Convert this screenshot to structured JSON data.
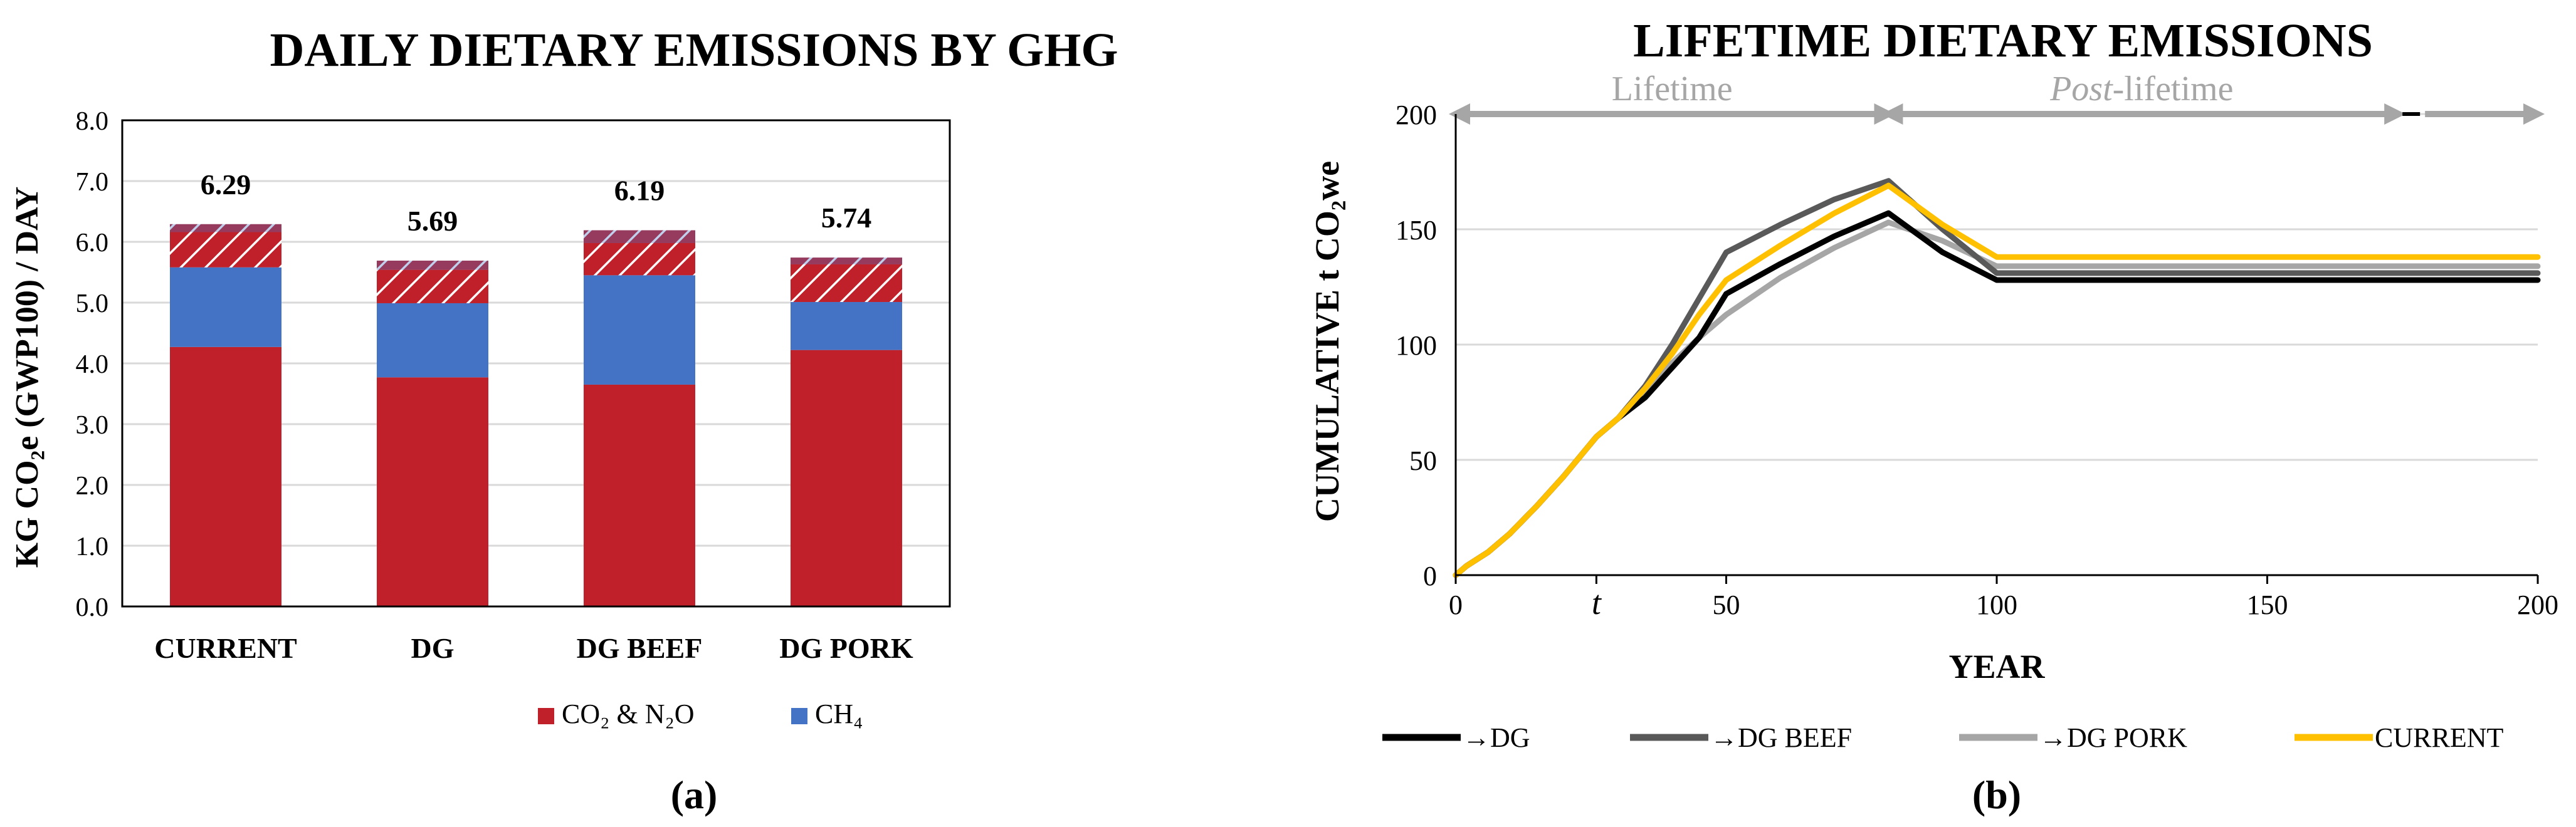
{
  "panels": {
    "a_label": "(a)",
    "b_label": "(b)"
  },
  "colors": {
    "co2_n2o": "#C0202A",
    "ch4": "#4472C4",
    "hatch_bg": "#C0202A",
    "hatch_line": "#FFFFFF",
    "grid": "#D9D9D9",
    "axis": "#000000",
    "arrow": "#A6A6A6",
    "dg": "#000000",
    "dg_beef": "#595959",
    "dg_pork": "#A6A6A6",
    "current": "#FFC000"
  },
  "chart_data": [
    {
      "type": "bar",
      "stacked": true,
      "title": "DAILY DIETARY EMISSIONS BY GHG",
      "ylabel": "KG CO₂e (GWP100) / DAY",
      "xlabel": "",
      "ylim": [
        0,
        8
      ],
      "yticks": [
        "0.0",
        "1.0",
        "2.0",
        "3.0",
        "4.0",
        "5.0",
        "6.0",
        "7.0",
        "8.0"
      ],
      "grid": true,
      "legend_position": "bottom",
      "categories": [
        "CURRENT",
        "DG",
        "DG BEEF",
        "DG PORK"
      ],
      "totals": [
        "6.29",
        "5.69",
        "6.19",
        "5.74"
      ],
      "series": [
        {
          "name": "CO₂ & N₂O",
          "pattern": "solid",
          "values": [
            4.27,
            3.77,
            3.65,
            4.22
          ]
        },
        {
          "name": "CH₄",
          "pattern": "solid",
          "values": [
            1.31,
            1.22,
            1.8,
            0.79
          ]
        },
        {
          "pattern": "hatched",
          "values": [
            0.58,
            0.55,
            0.53,
            0.62
          ]
        },
        {
          "pattern": "hatched",
          "values": [
            0.13,
            0.15,
            0.21,
            0.11
          ]
        }
      ]
    },
    {
      "type": "line",
      "title": "LIFETIME DIETARY EMISSIONS",
      "xlabel": "YEAR",
      "ylabel": "CUMULATIVE t CO₂we",
      "xlim": [
        0,
        200
      ],
      "ylim": [
        0,
        200
      ],
      "xticks": [
        "0",
        "t",
        "50",
        "100",
        "150",
        "200"
      ],
      "yticks": [
        "0",
        "50",
        "100",
        "150",
        "200"
      ],
      "grid": true,
      "legend_position": "bottom",
      "annotations": {
        "lifetime": "Lifetime",
        "post_italic": "Post",
        "post_rest": "-lifetime",
        "lifetime_range": [
          0,
          80
        ],
        "post_range": [
          80,
          200
        ]
      },
      "series": [
        {
          "name": "→DG",
          "color_key": "dg",
          "x": [
            0,
            2,
            6,
            10,
            15,
            20,
            26,
            30,
            35,
            40,
            45,
            50,
            60,
            70,
            80,
            90,
            100,
            200
          ],
          "y": [
            0,
            4,
            10,
            18,
            30,
            43,
            60,
            68,
            77,
            90,
            103,
            122,
            135,
            147,
            157,
            140,
            128,
            128
          ]
        },
        {
          "name": "→DG BEEF",
          "color_key": "dg_beef",
          "x": [
            0,
            2,
            6,
            10,
            15,
            20,
            26,
            30,
            35,
            40,
            45,
            50,
            60,
            70,
            80,
            90,
            100,
            200
          ],
          "y": [
            0,
            4,
            10,
            18,
            30,
            43,
            60,
            68,
            82,
            100,
            120,
            140,
            152,
            163,
            171,
            150,
            131,
            131
          ]
        },
        {
          "name": "→DG PORK",
          "color_key": "dg_pork",
          "x": [
            0,
            2,
            6,
            10,
            15,
            20,
            26,
            30,
            35,
            40,
            45,
            50,
            60,
            70,
            80,
            90,
            100,
            200
          ],
          "y": [
            0,
            4,
            10,
            18,
            30,
            43,
            60,
            68,
            80,
            92,
            103,
            113,
            129,
            142,
            153,
            145,
            134,
            134
          ]
        },
        {
          "name": "CURRENT",
          "color_key": "current",
          "x": [
            0,
            2,
            6,
            10,
            15,
            20,
            26,
            30,
            35,
            40,
            45,
            50,
            60,
            70,
            80,
            90,
            100,
            200
          ],
          "y": [
            0,
            4,
            10,
            18,
            30,
            43,
            60,
            68,
            81,
            96,
            113,
            128,
            143,
            157,
            169,
            152,
            138,
            138
          ]
        }
      ]
    }
  ]
}
